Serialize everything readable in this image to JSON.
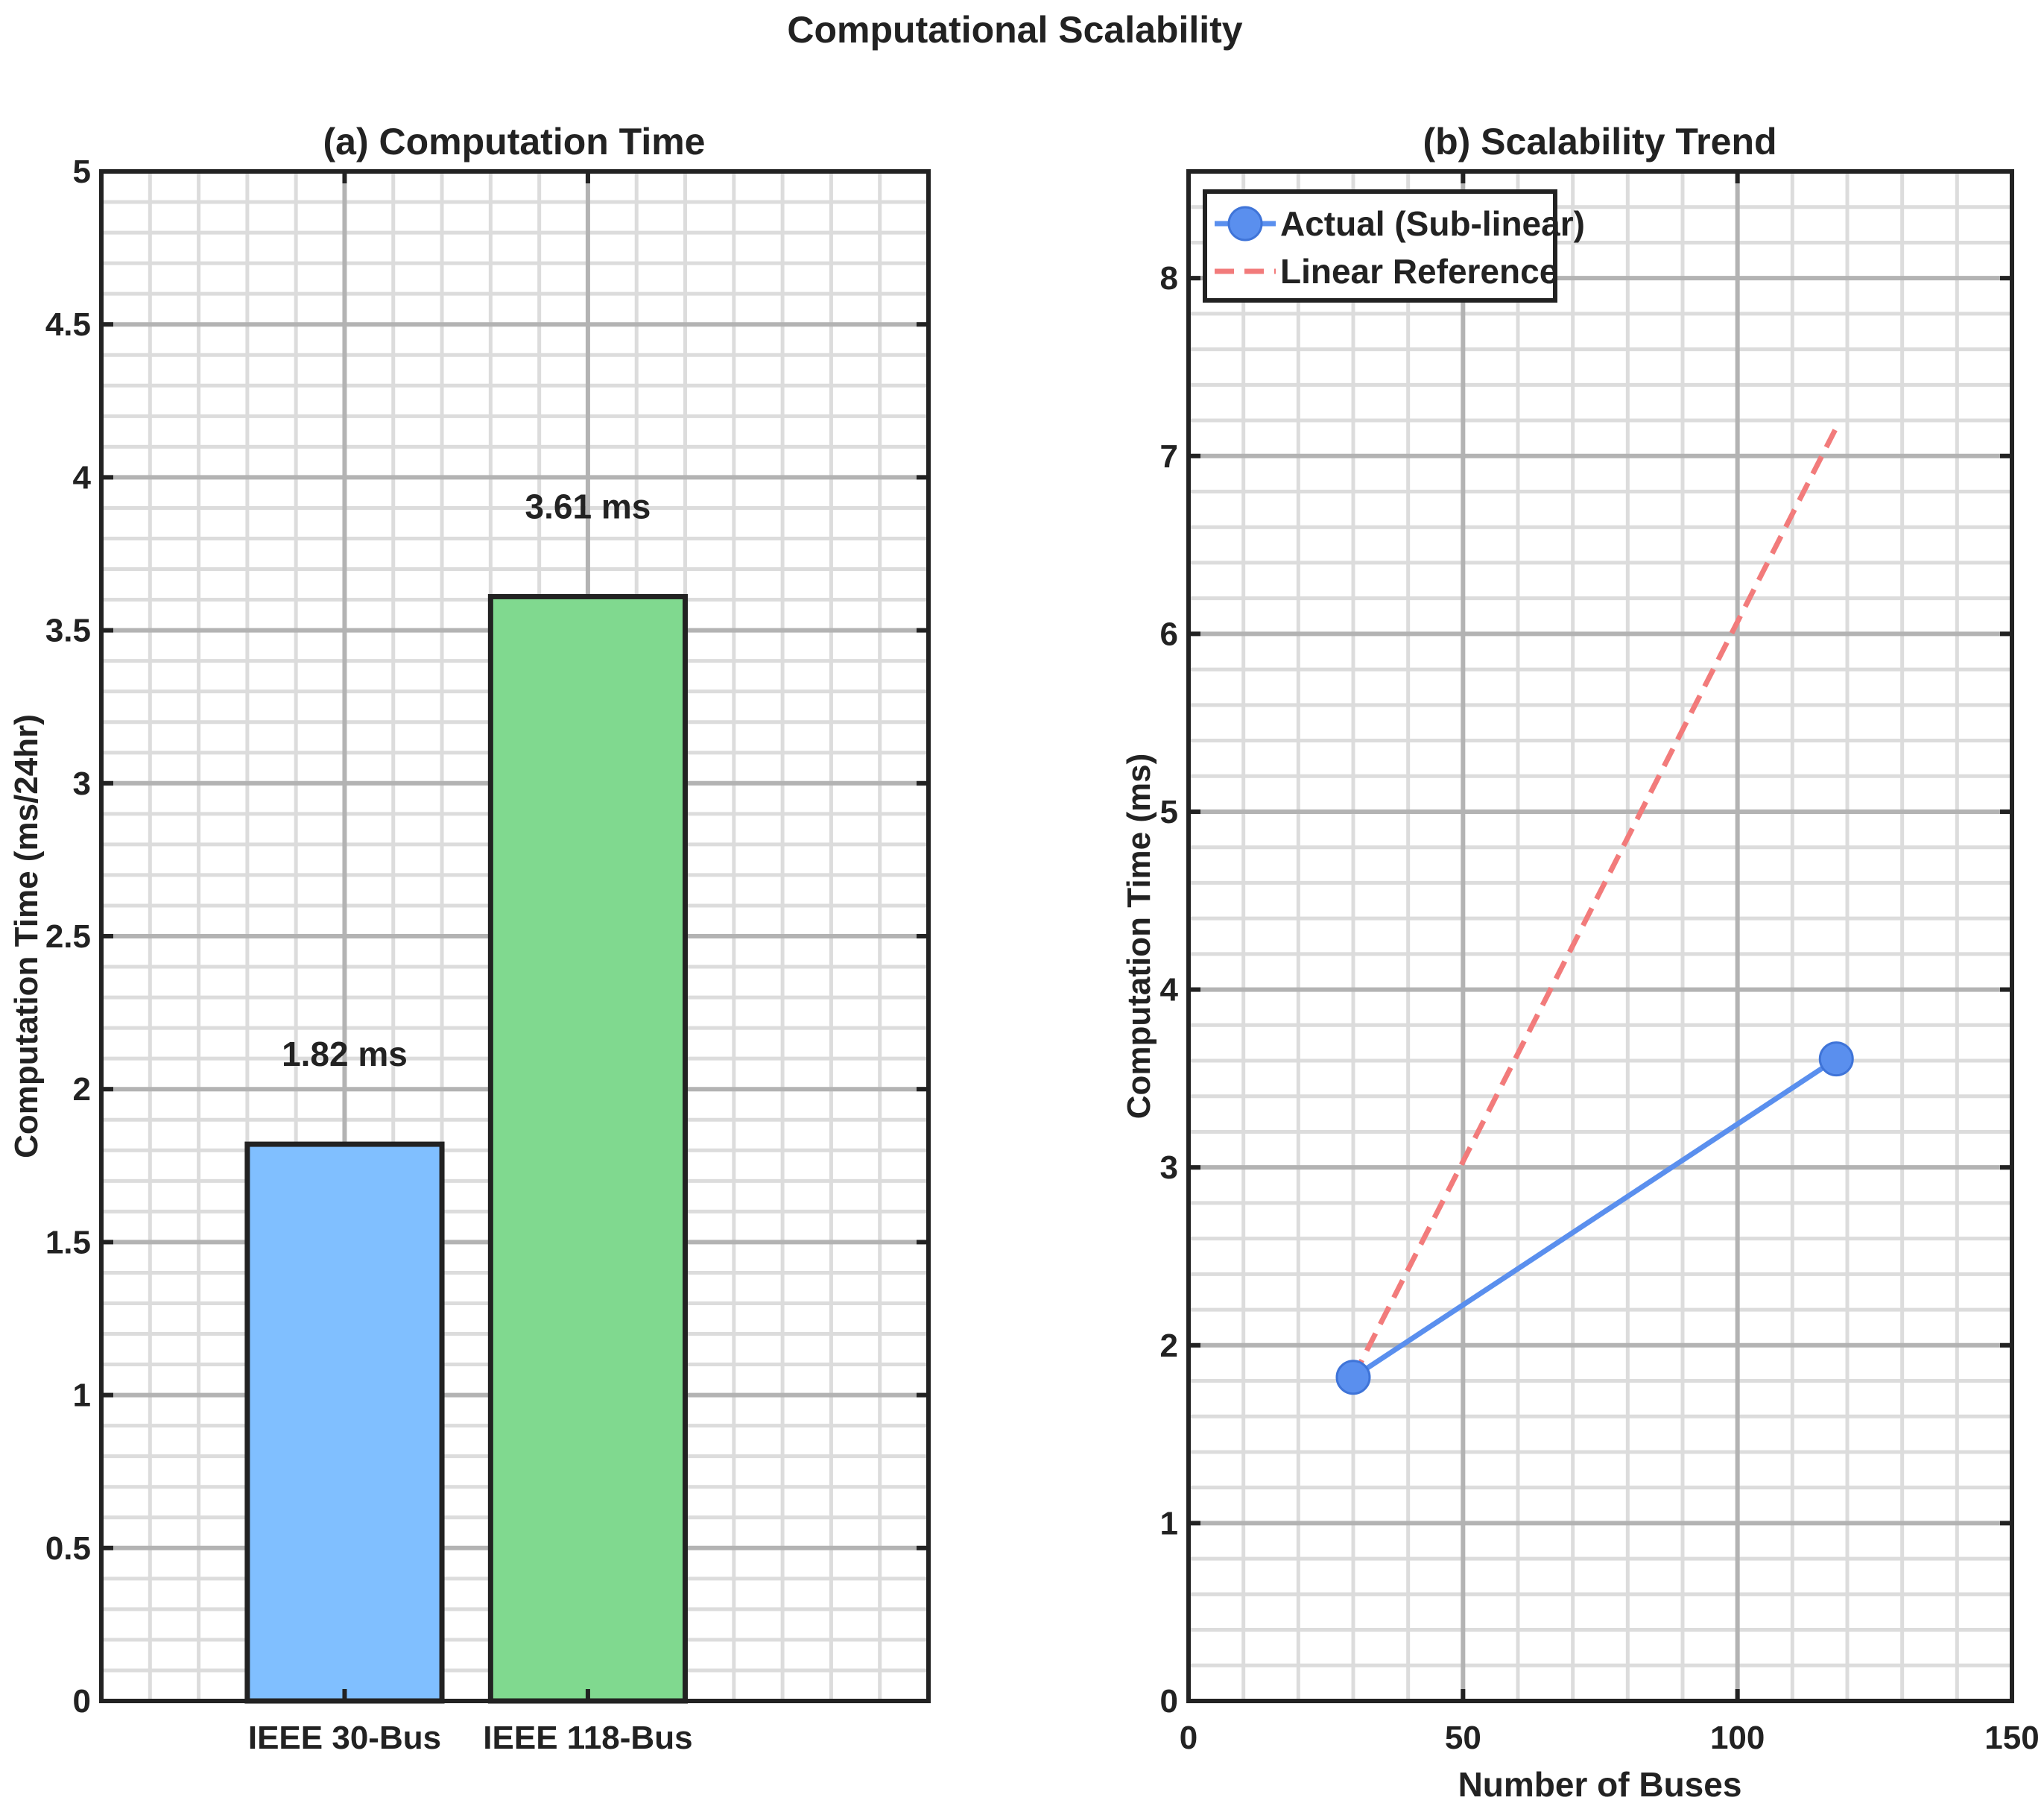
{
  "figure": {
    "title": "Computational Scalability"
  },
  "colors": {
    "bar_30": "#80bfff",
    "bar_118": "#80d98f",
    "actual": "#5a8fee",
    "linear": "#f27b7b",
    "frame": "#222222",
    "grid_major": "#b3b3b3",
    "grid_minor": "#dcdcdc"
  },
  "chart_data": [
    {
      "type": "bar",
      "title": "(a) Computation Time",
      "xlabel": "",
      "ylabel": "Computation Time (ms/24hr)",
      "categories": [
        "IEEE 30-Bus",
        "IEEE 118-Bus"
      ],
      "values": [
        1.82,
        3.61
      ],
      "data_labels": [
        "1.82 ms",
        "3.61 ms"
      ],
      "ylim": [
        0,
        5
      ],
      "yticks": [
        0,
        0.5,
        1,
        1.5,
        2,
        2.5,
        3,
        3.5,
        4,
        4.5,
        5
      ],
      "ytick_labels": [
        "0",
        "0.5",
        "1",
        "1.5",
        "2",
        "2.5",
        "3",
        "3.5",
        "4",
        "4.5",
        "5"
      ],
      "grid": true
    },
    {
      "type": "line",
      "title": "(b) Scalability Trend",
      "xlabel": "Number of Buses",
      "ylabel": "Computation Time (ms)",
      "xlim": [
        0,
        150
      ],
      "ylim": [
        0,
        8.6
      ],
      "xticks": [
        0,
        50,
        100,
        150
      ],
      "yticks": [
        0,
        1,
        2,
        3,
        4,
        5,
        6,
        7,
        8
      ],
      "grid": true,
      "legend_position": "top-left",
      "series": [
        {
          "name": "Actual (Sub-linear)",
          "x": [
            30,
            118
          ],
          "y": [
            1.82,
            3.61
          ],
          "style": "solid",
          "marker": "circle"
        },
        {
          "name": "Linear Reference",
          "x": [
            30,
            118
          ],
          "y": [
            1.82,
            7.16
          ],
          "style": "dashed",
          "marker": "none"
        }
      ]
    }
  ]
}
